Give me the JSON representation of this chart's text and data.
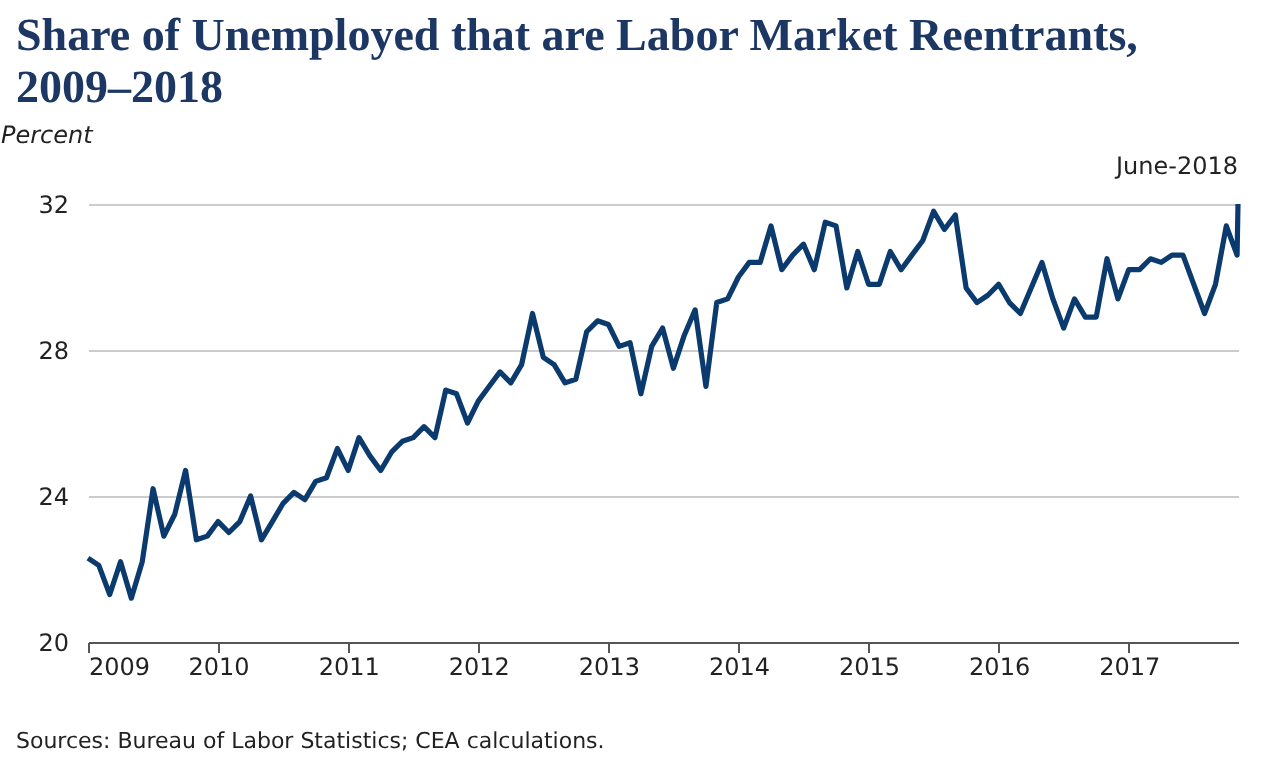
{
  "chart_data": {
    "type": "line",
    "title": "Share of Unemployed that are Labor Market Reentrants, 2009–2018",
    "ylabel": "Percent",
    "x": [
      2009.0,
      2009.083,
      2009.167,
      2009.25,
      2009.333,
      2009.417,
      2009.5,
      2009.583,
      2009.667,
      2009.75,
      2009.833,
      2009.917,
      2010.0,
      2010.083,
      2010.167,
      2010.25,
      2010.333,
      2010.417,
      2010.5,
      2010.583,
      2010.667,
      2010.75,
      2010.833,
      2010.917,
      2011.0,
      2011.083,
      2011.167,
      2011.25,
      2011.333,
      2011.417,
      2011.5,
      2011.583,
      2011.667,
      2011.75,
      2011.833,
      2011.917,
      2012.0,
      2012.083,
      2012.167,
      2012.25,
      2012.333,
      2012.417,
      2012.5,
      2012.583,
      2012.667,
      2012.75,
      2012.833,
      2012.917,
      2013.0,
      2013.083,
      2013.167,
      2013.25,
      2013.333,
      2013.417,
      2013.5,
      2013.583,
      2013.667,
      2013.75,
      2013.833,
      2013.917,
      2014.0,
      2014.083,
      2014.167,
      2014.25,
      2014.333,
      2014.417,
      2014.5,
      2014.583,
      2014.667,
      2014.75,
      2014.833,
      2014.917,
      2015.0,
      2015.083,
      2015.167,
      2015.25,
      2015.333,
      2015.417,
      2015.5,
      2015.583,
      2015.667,
      2015.75,
      2015.833,
      2015.917,
      2016.0,
      2016.083,
      2016.167,
      2016.25,
      2016.333,
      2016.417,
      2016.5,
      2016.583,
      2016.667,
      2016.75,
      2016.833,
      2016.917,
      2017.0,
      2017.083,
      2017.167,
      2017.25,
      2017.333,
      2017.417,
      2017.5,
      2017.583,
      2017.667,
      2017.75,
      2017.833,
      2017.84
    ],
    "series": [
      {
        "color": "#0b3a6e",
        "values": [
          22.3,
          22.1,
          21.3,
          22.2,
          21.2,
          22.2,
          24.2,
          22.9,
          23.5,
          24.7,
          22.8,
          22.9,
          23.3,
          23.0,
          23.3,
          24.0,
          22.8,
          23.3,
          23.8,
          24.1,
          23.9,
          24.4,
          24.5,
          25.3,
          24.7,
          25.6,
          25.1,
          24.7,
          25.2,
          25.5,
          25.6,
          25.9,
          25.6,
          26.9,
          26.8,
          26.0,
          26.6,
          27.0,
          27.4,
          27.1,
          27.6,
          29.0,
          27.8,
          27.6,
          27.1,
          27.2,
          28.5,
          28.8,
          28.7,
          28.1,
          28.2,
          26.8,
          28.1,
          28.6,
          27.5,
          28.4,
          29.1,
          27.0,
          29.3,
          29.4,
          30.0,
          30.4,
          30.4,
          31.4,
          30.2,
          30.6,
          30.9,
          30.2,
          31.5,
          31.4,
          29.7,
          30.7,
          29.8,
          29.8,
          30.7,
          30.2,
          30.6,
          31.0,
          31.8,
          31.3,
          31.7,
          29.7,
          29.3,
          29.5,
          29.8,
          29.3,
          29.0,
          29.7,
          30.4,
          29.4,
          28.6,
          29.4,
          28.9,
          28.9,
          30.5,
          29.4,
          30.2,
          30.2,
          30.5,
          30.4,
          30.6,
          30.6,
          29.8,
          29.0,
          29.8,
          31.4,
          30.6,
          32.0
        ]
      }
    ],
    "xlim": [
      2009,
      2017.84
    ],
    "xticks": [
      2009,
      2010,
      2011,
      2012,
      2013,
      2014,
      2015,
      2016,
      2017
    ],
    "ylim": [
      20,
      32
    ],
    "yticks": [
      20,
      24,
      28,
      32
    ],
    "grid": "y",
    "marker": "none",
    "line_style": "solid",
    "annotations": [
      {
        "text": "June-2018",
        "x": 2017.84,
        "y": 32
      },
      "Sources: Bureau of Labor Statistics; CEA calculations."
    ]
  }
}
